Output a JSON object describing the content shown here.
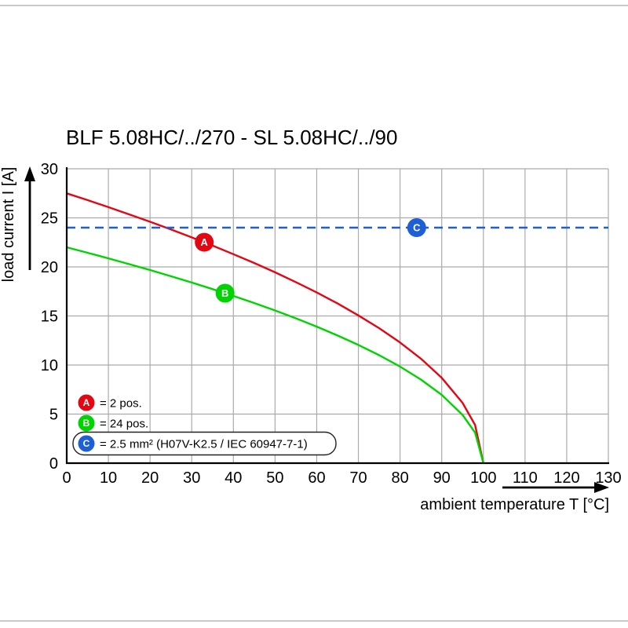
{
  "chart_data": {
    "type": "line",
    "title": "BLF 5.08HC/../270 - SL 5.08HC/../90",
    "xlabel": "ambient temperature T [°C]",
    "ylabel": "load current I [A]",
    "xlim": [
      0,
      130
    ],
    "ylim": [
      0,
      30
    ],
    "xticks": [
      0,
      10,
      20,
      30,
      40,
      50,
      60,
      70,
      80,
      90,
      100,
      110,
      120,
      130
    ],
    "yticks": [
      0,
      5,
      10,
      15,
      20,
      25,
      30
    ],
    "grid": true,
    "legend_position": "lower-left",
    "colors": {
      "grid": "#ababab",
      "axis": "#000000",
      "red": "#e30613",
      "green": "#00d400",
      "blue": "#1e5fd8"
    },
    "series": [
      {
        "name": "A",
        "label": "= 2 pos.",
        "color": "#e30613",
        "style": "solid",
        "x": [
          0,
          5,
          10,
          15,
          20,
          25,
          30,
          35,
          40,
          45,
          50,
          55,
          60,
          65,
          70,
          75,
          80,
          85,
          90,
          95,
          98,
          100
        ],
        "y": [
          27.5,
          26.81,
          26.09,
          25.35,
          24.6,
          23.82,
          23.01,
          22.17,
          21.3,
          20.4,
          19.45,
          18.45,
          17.39,
          16.27,
          15.06,
          13.75,
          12.3,
          10.65,
          8.7,
          6.15,
          3.89,
          0
        ]
      },
      {
        "name": "B",
        "label": "= 24 pos.",
        "color": "#00d400",
        "style": "solid",
        "x": [
          0,
          5,
          10,
          15,
          20,
          25,
          30,
          35,
          40,
          45,
          50,
          55,
          60,
          65,
          70,
          75,
          80,
          85,
          90,
          95,
          98,
          100
        ],
        "y": [
          22,
          21.44,
          20.87,
          20.28,
          19.68,
          19.05,
          18.41,
          17.74,
          17.04,
          16.32,
          15.56,
          14.76,
          13.91,
          13.01,
          12.05,
          11,
          9.84,
          8.52,
          6.96,
          4.92,
          3.11,
          0
        ]
      },
      {
        "name": "C",
        "label": "= 2.5 mm² (H07V-K2.5 / IEC 60947-7-1)",
        "color": "#1e5fd8",
        "style": "dashed",
        "legend_box": true,
        "x": [
          0,
          130
        ],
        "y": [
          24,
          24
        ]
      }
    ],
    "point_badges": [
      {
        "series": "A",
        "x": 33,
        "y": 22.51
      },
      {
        "series": "B",
        "x": 38,
        "y": 17.32
      },
      {
        "series": "C",
        "x": 84,
        "y": 24
      }
    ]
  }
}
